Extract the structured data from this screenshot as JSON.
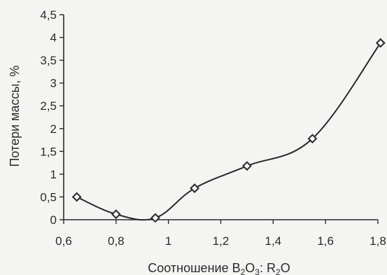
{
  "chart_data": {
    "type": "line",
    "title": "",
    "xlabel": {
      "prefix": "Соотношение B",
      "sub1": "2",
      "mid": "O",
      "sub2": "3",
      "suffix": ": R",
      "sub3": "2",
      "end": "O"
    },
    "ylabel": "Потери массы, %",
    "xlim": [
      0.6,
      1.8
    ],
    "ylim": [
      0,
      4.5
    ],
    "xticks": [
      0.6,
      0.8,
      1.0,
      1.2,
      1.4,
      1.6,
      1.8
    ],
    "xtick_labels": [
      "0,6",
      "0,8",
      "1",
      "1,2",
      "1,4",
      "1,6",
      "1,8"
    ],
    "yticks": [
      0,
      0.5,
      1,
      1.5,
      2,
      2.5,
      3,
      3.5,
      4,
      4.5
    ],
    "ytick_labels": [
      "0",
      "0,5",
      "1",
      "1,5",
      "2",
      "2,5",
      "3",
      "3,5",
      "4",
      "4,5"
    ],
    "grid": false,
    "legend": "none",
    "marker": "diamond",
    "series": [
      {
        "x": [
          0.65,
          0.8,
          0.95,
          1.1,
          1.3,
          1.55,
          1.81
        ],
        "y": [
          0.5,
          0.12,
          0.04,
          0.69,
          1.18,
          1.78,
          3.88
        ]
      }
    ]
  }
}
